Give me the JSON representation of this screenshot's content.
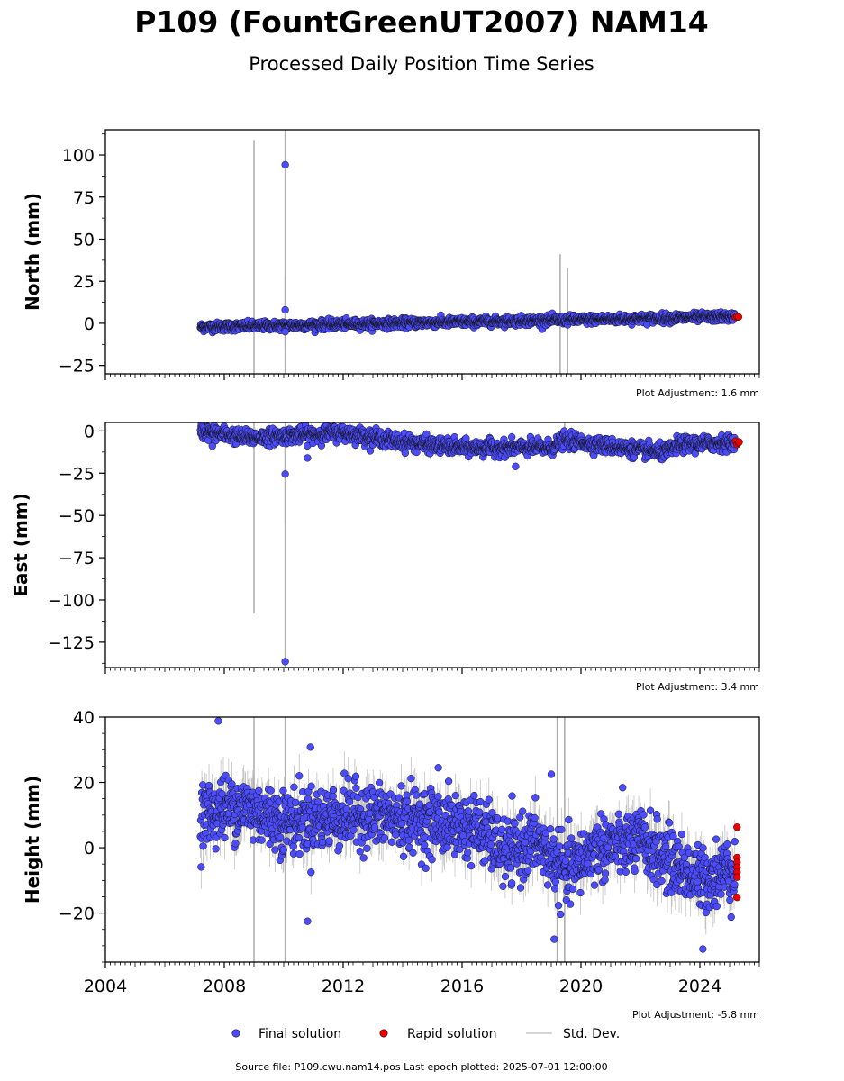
{
  "chart_data": {
    "type": "scatter",
    "title": "P109 (FountGreenUT2007) NAM14",
    "subtitle": "Processed Daily Position Time Series",
    "xlim": [
      2004,
      2026
    ],
    "x_ticks": [
      "2004",
      "2008",
      "2012",
      "2016",
      "2020",
      "2024"
    ],
    "grid": false,
    "legend_placement": "bottom-center",
    "colors": {
      "final": "#4c4cff",
      "rapid": "#ee0000",
      "stddev": "#b0b0b0",
      "edge": "#111111"
    },
    "legend": {
      "final": "Final solution",
      "rapid": "Rapid solution",
      "stddev": "Std. Dev."
    },
    "panels": [
      {
        "id": "north",
        "ylabel": "North (mm)",
        "ylim": [
          -30,
          115
        ],
        "y_ticks": [
          "−25",
          "0",
          "25",
          "50",
          "75",
          "100"
        ],
        "adjustment": "Plot Adjustment: 1.6 mm",
        "trend": [
          [
            2007.2,
            -2.2
          ],
          [
            2025.3,
            4.0
          ]
        ],
        "noise_sd": 1.3,
        "outliers": [
          [
            2010.05,
            94.2
          ],
          [
            2010.05,
            8.0
          ],
          [
            2010.05,
            -5.0
          ]
        ],
        "stddev_spikes": [
          [
            2009.0,
            -30,
            109
          ],
          [
            2010.05,
            -30,
            115
          ],
          [
            2010.05,
            -14,
            28
          ],
          [
            2019.3,
            -30,
            41
          ],
          [
            2019.55,
            -30,
            33
          ]
        ],
        "rapid": [
          [
            2025.2,
            3.6
          ],
          [
            2025.25,
            4.1
          ],
          [
            2025.3,
            3.8
          ]
        ]
      },
      {
        "id": "east",
        "ylabel": "East (mm)",
        "ylim": [
          -140,
          5
        ],
        "y_ticks": [
          "0",
          "−25",
          "−50",
          "−75",
          "−100",
          "−125"
        ],
        "adjustment": "Plot Adjustment: 3.4 mm",
        "trend": [
          [
            2007.2,
            0.0
          ],
          [
            2008.8,
            -4.0
          ],
          [
            2011.0,
            -2.0
          ],
          [
            2012.0,
            -1.0
          ],
          [
            2014.0,
            -6.5
          ],
          [
            2016.0,
            -10.0
          ],
          [
            2019.0,
            -10.0
          ],
          [
            2019.4,
            -5.5
          ],
          [
            2020.5,
            -8.0
          ],
          [
            2022.8,
            -13.0
          ],
          [
            2023.3,
            -8.0
          ],
          [
            2025.0,
            -7.0
          ]
        ],
        "noise_sd": 2.2,
        "outliers": [
          [
            2010.05,
            -25.5
          ],
          [
            2010.05,
            -136.5
          ],
          [
            2010.8,
            -16.0
          ],
          [
            2007.6,
            -9.0
          ],
          [
            2017.8,
            -21.0
          ]
        ],
        "stddev_spikes": [
          [
            2009.0,
            -108,
            5
          ],
          [
            2010.05,
            -140,
            5
          ],
          [
            2010.05,
            -55,
            -8
          ],
          [
            2019.45,
            -12,
            5
          ]
        ],
        "rapid": [
          [
            2025.2,
            -6.0
          ],
          [
            2025.25,
            -8.0
          ],
          [
            2025.3,
            -7.0
          ],
          [
            2025.32,
            -6.5
          ]
        ]
      },
      {
        "id": "height",
        "ylabel": "Height (mm)",
        "ylim": [
          -35,
          40
        ],
        "y_ticks": [
          "−20",
          "0",
          "20",
          "40"
        ],
        "adjustment": "Plot Adjustment: -5.8 mm",
        "trend": [
          [
            2007.2,
            10.0
          ],
          [
            2008.5,
            13.0
          ],
          [
            2010.0,
            8.0
          ],
          [
            2012.5,
            10.0
          ],
          [
            2015.0,
            8.0
          ],
          [
            2016.5,
            6.0
          ],
          [
            2017.5,
            -2.0
          ],
          [
            2018.5,
            2.0
          ],
          [
            2019.5,
            -8.0
          ],
          [
            2020.5,
            0.0
          ],
          [
            2022.0,
            2.0
          ],
          [
            2023.0,
            -4.0
          ],
          [
            2024.0,
            -10.0
          ],
          [
            2025.2,
            -6.0
          ]
        ],
        "noise_sd": 4.8,
        "outliers": [
          [
            2007.8,
            38.8
          ],
          [
            2010.9,
            30.8
          ],
          [
            2010.8,
            -22.5
          ],
          [
            2019.1,
            -28.0
          ],
          [
            2024.1,
            -31.0
          ],
          [
            2015.2,
            24.5
          ],
          [
            2019.0,
            22.5
          ]
        ],
        "stddev_spikes": [
          [
            2009.0,
            -35,
            40
          ],
          [
            2010.05,
            -35,
            40
          ],
          [
            2019.2,
            -35,
            40
          ],
          [
            2019.45,
            -35,
            40
          ]
        ],
        "rapid": [
          [
            2025.25,
            6.3
          ],
          [
            2025.25,
            -3.0
          ],
          [
            2025.25,
            -4.5
          ],
          [
            2025.25,
            -6.0
          ],
          [
            2025.25,
            -7.5
          ],
          [
            2025.25,
            -9.0
          ],
          [
            2025.25,
            -15.2
          ]
        ]
      }
    ],
    "source_note": "Source file: P109.cwu.nam14.pos  Last epoch plotted: 2025-07-01 12:00:00"
  }
}
